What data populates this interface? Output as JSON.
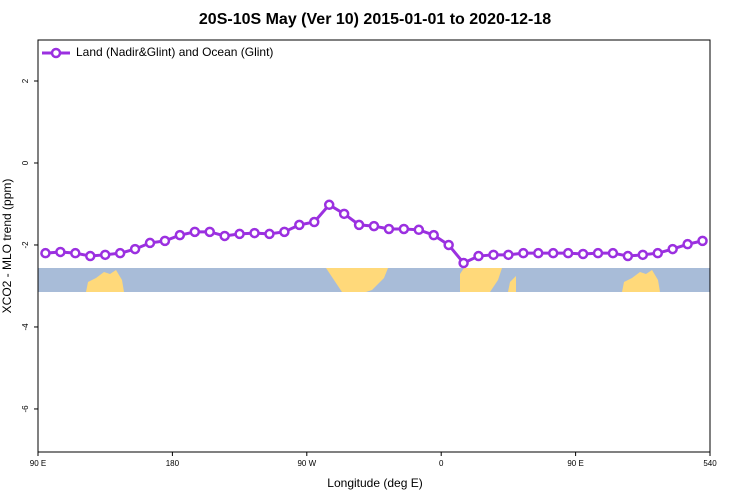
{
  "chart_data": {
    "type": "line",
    "title": "20S-10S May (Ver 10)   2015-01-01 to 2020-12-18",
    "x_label": "Longitude (deg E)",
    "y_label": "XCO2 - MLO trend (ppm)",
    "x": [
      95,
      105,
      115,
      125,
      135,
      145,
      155,
      165,
      175,
      185,
      195,
      205,
      215,
      225,
      235,
      245,
      255,
      265,
      275,
      285,
      295,
      305,
      315,
      325,
      335,
      345,
      355,
      365,
      375,
      385,
      395,
      405,
      415,
      425,
      435,
      445,
      455,
      465,
      475,
      485,
      495,
      505,
      515,
      525,
      535
    ],
    "series": [
      {
        "name": "Land (Nadir&Glint) and Ocean (Glint)",
        "color": "#9b30e0",
        "values": [
          -2.2,
          -2.17,
          -2.2,
          -2.27,
          -2.24,
          -2.2,
          -2.1,
          -1.95,
          -1.9,
          -1.76,
          -1.68,
          -1.68,
          -1.78,
          -1.73,
          -1.71,
          -1.73,
          -1.68,
          -1.51,
          -1.44,
          -1.02,
          -1.24,
          -1.51,
          -1.54,
          -1.61,
          -1.61,
          -1.63,
          -1.76,
          -2.0,
          -2.44,
          -2.27,
          -2.24,
          -2.24,
          -2.2,
          -2.2,
          -2.2,
          -2.2,
          -2.22,
          -2.2,
          -2.2,
          -2.27,
          -2.24,
          -2.2,
          -2.1,
          -1.98,
          -1.9
        ]
      }
    ],
    "xlim": [
      90,
      540
    ],
    "xticks": [
      {
        "value": 90,
        "label": "90 E"
      },
      180,
      {
        "value": 270,
        "label": "90 W"
      },
      {
        "value": 360,
        "label": "0"
      },
      {
        "value": 450,
        "label": "90 E"
      },
      540
    ],
    "ylim": [
      -7.05,
      3
    ],
    "yticks": [
      2,
      0,
      -2,
      -4,
      -6
    ],
    "legend": "top-left"
  }
}
